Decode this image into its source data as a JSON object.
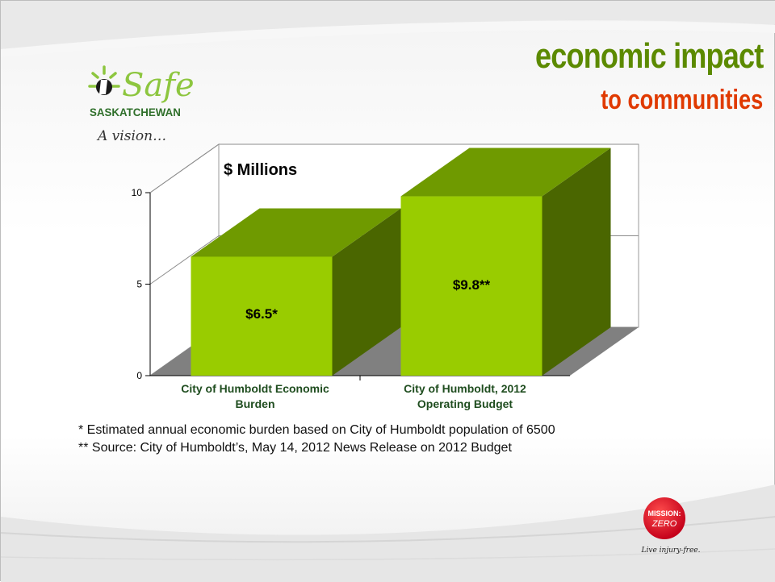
{
  "slide": {
    "title": "economic impact",
    "subtitle": "to communities",
    "logo": {
      "brand_safe": "Safe",
      "brand_word": "SASKATCHEWAN",
      "tagline": "A vision…"
    },
    "footnotes": [
      "*  Estimated annual economic burden based on City of Humboldt population of 6500",
      "** Source: City of Humboldt’s, May 14, 2012 News Release on 2012 Budget"
    ],
    "badge": {
      "line1": "MISSION:",
      "line2": "ZERO",
      "tagline": "Live injury-free."
    }
  },
  "chart_data": {
    "type": "bar",
    "title": "$ Millions",
    "categories": [
      [
        "City of Humboldt Economic",
        "Burden"
      ],
      [
        "City of Humboldt, 2012",
        "Operating Budget"
      ]
    ],
    "values": [
      6.5,
      9.8
    ],
    "data_labels": [
      "$6.5*",
      "$9.8**"
    ],
    "yticks": [
      0,
      5,
      10
    ],
    "ylim": [
      0,
      10
    ],
    "style": "3d",
    "colors": {
      "front": "#99cc00",
      "top": "#6f9a00",
      "side": "#4a6600",
      "floor": "#808080"
    }
  }
}
